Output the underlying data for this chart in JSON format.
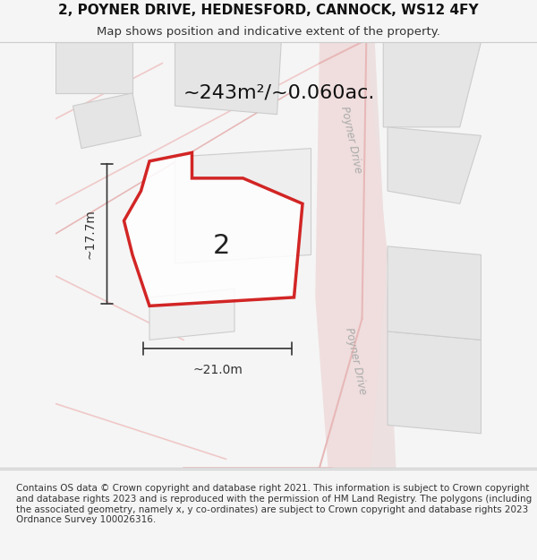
{
  "title_line1": "2, POYNER DRIVE, HEDNESFORD, CANNOCK, WS12 4FY",
  "title_line2": "Map shows position and indicative extent of the property.",
  "area_text": "~243m²/~0.060ac.",
  "label_2": "2",
  "dim_height": "~17.7m",
  "dim_width": "~21.0m",
  "road_label_top": "Poyner Drive",
  "road_label_bottom": "Poyner Drive",
  "footer": "Contains OS data © Crown copyright and database right 2021. This information is subject to Crown copyright and database rights 2023 and is reproduced with the permission of HM Land Registry. The polygons (including the associated geometry, namely x, y co-ordinates) are subject to Crown copyright and database rights 2023 Ordnance Survey 100026316.",
  "bg_color": "#f5f5f5",
  "map_bg": "#ffffff",
  "building_color": "#e8e8e8",
  "building_edge": "#d0d0d0",
  "road_color": "#f0d0d0",
  "road_center_color": "#e8b8b8",
  "plot_edge_color": "#cc0000",
  "plot_fill": "#ffffff",
  "plot_fill_alpha": 0.3,
  "dim_color": "#333333",
  "title_fontsize": 11,
  "subtitle_fontsize": 9.5,
  "area_fontsize": 16,
  "label_fontsize": 22,
  "dim_fontsize": 10,
  "footer_fontsize": 7.5
}
